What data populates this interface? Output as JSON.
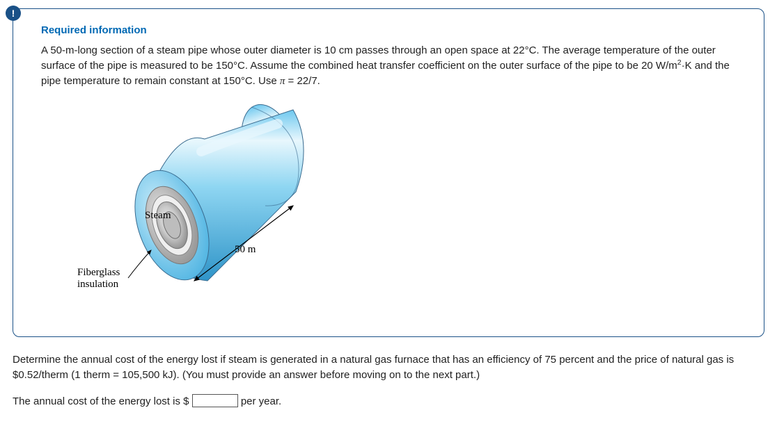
{
  "badge": "!",
  "header": "Required information",
  "problem_html": "A 50-m-long section of a steam pipe whose outer diameter is 10 cm passes through an open space at 22°C. The average temperature of the outer surface of the pipe is measured to be 150°C. Assume the combined heat transfer coefficient on the outer surface of the pipe to be 20 W/m<sup>2</sup>·K and the pipe temperature to remain constant at 150°C. Use <span class=\"pi\">π</span> = 22/7.",
  "figure": {
    "steam_label": "Steam",
    "insulation_label": "Fiberglass<br>insulation",
    "length_label": "50 m",
    "colors": {
      "cyl_light": "#a9e0f7",
      "cyl_mid": "#6ec8ef",
      "cyl_dark": "#3aa8dc",
      "cyl_shine": "#e8f7fd",
      "cap_outer": "#bcbcbc",
      "cap_ring1": "#e3e3e3",
      "cap_ring2": "#8f8f8f",
      "cap_core": "#d9d9d9",
      "stroke": "#3a6b8f",
      "arrow": "#000000"
    }
  },
  "question": "Determine the annual cost of the energy lost if steam is generated in a natural gas furnace that has an efficiency of 75 percent and the price of natural gas is $0.52/therm (1 therm = 105,500 kJ). (You must provide an answer before moving on to the next part.)",
  "answer": {
    "prefix": "The annual cost of the energy lost is $",
    "value": "",
    "suffix": " per year."
  }
}
